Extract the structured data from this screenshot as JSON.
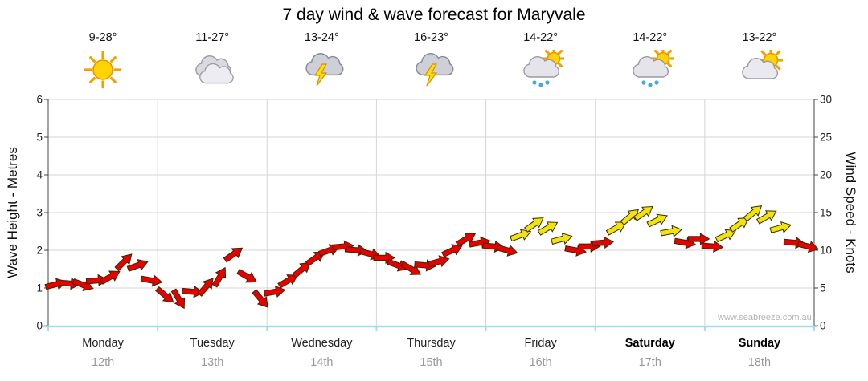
{
  "title": "7 day wind & wave forecast for Maryvale",
  "watermark": "www.seabreeze.com.au",
  "left_axis": {
    "title": "Wave Height - Metres",
    "ticks": [
      0,
      1,
      2,
      3,
      4,
      5,
      6
    ]
  },
  "right_axis": {
    "title": "Wind Speed - Knots",
    "ticks": [
      0,
      5,
      10,
      15,
      20,
      25,
      30
    ]
  },
  "days": [
    {
      "name": "Monday",
      "date": "12th",
      "temp": "9-28°",
      "icon": "sunny",
      "bold": false
    },
    {
      "name": "Tuesday",
      "date": "13th",
      "temp": "11-27°",
      "icon": "cloudy",
      "bold": false
    },
    {
      "name": "Wednesday",
      "date": "14th",
      "temp": "13-24°",
      "icon": "thunderstorm",
      "bold": false
    },
    {
      "name": "Thursday",
      "date": "15th",
      "temp": "16-23°",
      "icon": "thunderstorm",
      "bold": false
    },
    {
      "name": "Friday",
      "date": "16th",
      "temp": "14-22°",
      "icon": "sun-showers",
      "bold": false
    },
    {
      "name": "Saturday",
      "date": "17th",
      "temp": "14-22°",
      "icon": "sun-showers",
      "bold": true
    },
    {
      "name": "Sunday",
      "date": "18th",
      "temp": "13-22°",
      "icon": "sun-cloud",
      "bold": true
    }
  ],
  "chart_data": {
    "type": "line",
    "subtype": "wind-direction-arrows",
    "title": "7 day wind & wave forecast for Maryvale",
    "categories": [
      "Monday 12th",
      "Tuesday 13th",
      "Wednesday 14th",
      "Thursday 15th",
      "Friday 16th",
      "Saturday 17th",
      "Sunday 18th"
    ],
    "left_axis": {
      "label": "Wave Height - Metres",
      "ylim": [
        0,
        6
      ],
      "ticks": [
        0,
        1,
        2,
        3,
        4,
        5,
        6
      ]
    },
    "right_axis": {
      "label": "Wind Speed - Knots",
      "ylim": [
        0,
        30
      ],
      "ticks": [
        0,
        5,
        10,
        15,
        20,
        25,
        30
      ]
    },
    "grid": true,
    "legend": "none",
    "colors": {
      "red": "#e60000",
      "yellow": "#f2e408"
    },
    "points_format": [
      "day_offset",
      "wind_speed_knots",
      "color(r=red,y=yellow)",
      "arrow_bearing_deg"
    ],
    "points": [
      [
        0,
        5.5,
        "r",
        75
      ],
      [
        0.125,
        5.6,
        "r",
        95
      ],
      [
        0.25,
        5.4,
        "r",
        110
      ],
      [
        0.375,
        6,
        "r",
        85
      ],
      [
        0.5,
        6.5,
        "r",
        60
      ],
      [
        0.625,
        8.5,
        "r",
        45
      ],
      [
        0.75,
        8,
        "r",
        70
      ],
      [
        0.875,
        6,
        "r",
        100
      ],
      [
        1,
        4,
        "r",
        130
      ],
      [
        1.125,
        3.5,
        "r",
        150
      ],
      [
        1.25,
        4.5,
        "r",
        95
      ],
      [
        1.375,
        5.2,
        "r",
        40
      ],
      [
        1.5,
        6.5,
        "r",
        30
      ],
      [
        1.625,
        9.5,
        "r",
        55
      ],
      [
        1.75,
        6.5,
        "r",
        120
      ],
      [
        1.875,
        3.5,
        "r",
        140
      ],
      [
        2,
        4.5,
        "r",
        80
      ],
      [
        2.125,
        6,
        "r",
        60
      ],
      [
        2.25,
        7.5,
        "r",
        50
      ],
      [
        2.375,
        9,
        "r",
        55
      ],
      [
        2.5,
        10,
        "r",
        70
      ],
      [
        2.625,
        10.5,
        "r",
        85
      ],
      [
        2.75,
        10,
        "r",
        95
      ],
      [
        2.875,
        9.5,
        "r",
        105
      ],
      [
        3,
        9,
        "r",
        90
      ],
      [
        3.125,
        8,
        "r",
        110
      ],
      [
        3.25,
        7.5,
        "r",
        120
      ],
      [
        3.375,
        8,
        "r",
        95
      ],
      [
        3.5,
        8.5,
        "r",
        75
      ],
      [
        3.625,
        10,
        "r",
        65
      ],
      [
        3.75,
        11.5,
        "r",
        60
      ],
      [
        3.875,
        11,
        "r",
        80
      ],
      [
        4,
        10.5,
        "r",
        95
      ],
      [
        4.125,
        10,
        "r",
        105
      ],
      [
        4.25,
        12,
        "y",
        70
      ],
      [
        4.375,
        13.5,
        "y",
        55
      ],
      [
        4.5,
        13,
        "y",
        60
      ],
      [
        4.625,
        11.5,
        "y",
        75
      ],
      [
        4.75,
        10,
        "r",
        100
      ],
      [
        4.875,
        10.5,
        "r",
        90
      ],
      [
        5,
        11,
        "r",
        85
      ],
      [
        5.125,
        13,
        "y",
        60
      ],
      [
        5.25,
        14.5,
        "y",
        50
      ],
      [
        5.375,
        15,
        "y",
        55
      ],
      [
        5.5,
        14,
        "y",
        65
      ],
      [
        5.625,
        12.5,
        "y",
        80
      ],
      [
        5.75,
        11,
        "r",
        100
      ],
      [
        5.875,
        11.5,
        "r",
        90
      ],
      [
        6,
        10.5,
        "r",
        95
      ],
      [
        6.125,
        12,
        "y",
        65
      ],
      [
        6.25,
        13.5,
        "y",
        55
      ],
      [
        6.375,
        15,
        "y",
        50
      ],
      [
        6.5,
        14.5,
        "y",
        60
      ],
      [
        6.625,
        13,
        "y",
        75
      ],
      [
        6.75,
        11,
        "r",
        95
      ],
      [
        6.875,
        10.5,
        "r",
        105
      ]
    ]
  }
}
